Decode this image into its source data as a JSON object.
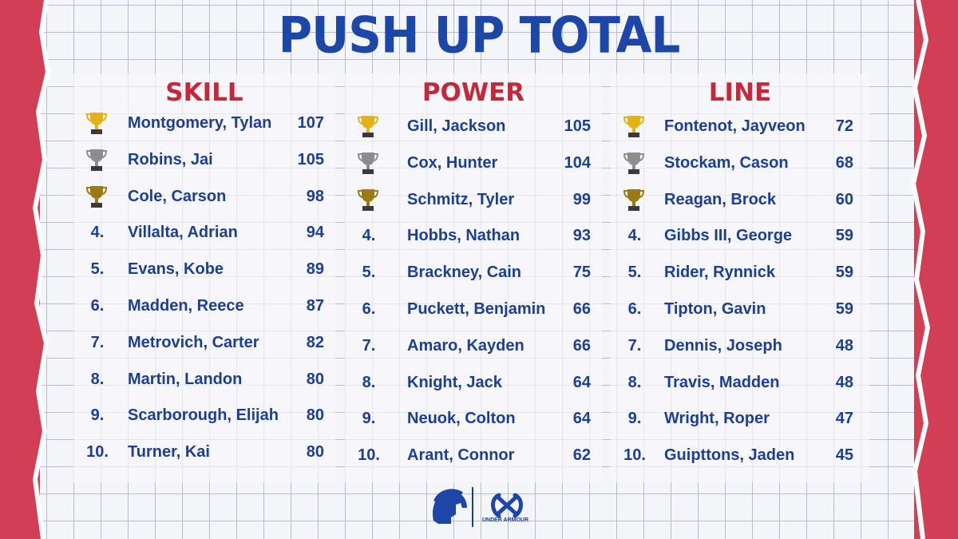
{
  "title": "PUSH UP TOTAL",
  "colors": {
    "title": "#1c47a8",
    "heading": "#c5283a",
    "text": "#1c3f93",
    "border": "#d23f55",
    "gold": "#e3b217",
    "silver": "#8d8d8d",
    "bronze": "#9c7a12"
  },
  "brand": {
    "ua_text": "UNDER ARMOUR"
  },
  "columns": [
    {
      "heading": "SKILL",
      "rows": [
        {
          "rank": "",
          "trophy": "gold-trophy-icon",
          "name": "Montgomery, Tylan",
          "score": "107"
        },
        {
          "rank": "",
          "trophy": "silver-trophy-icon",
          "name": "Robins, Jai",
          "score": "105"
        },
        {
          "rank": "",
          "trophy": "bronze-trophy-icon",
          "name": "Cole, Carson",
          "score": "98"
        },
        {
          "rank": "4.",
          "name": "Villalta, Adrian",
          "score": "94"
        },
        {
          "rank": "5.",
          "name": "Evans, Kobe",
          "score": "89"
        },
        {
          "rank": "6.",
          "name": "Madden, Reece",
          "score": "87"
        },
        {
          "rank": "7.",
          "name": "Metrovich, Carter",
          "score": "82"
        },
        {
          "rank": "8.",
          "name": "Martin, Landon",
          "score": "80"
        },
        {
          "rank": "9.",
          "name": "Scarborough, Elijah",
          "score": "80"
        },
        {
          "rank": "10.",
          "name": "Turner, Kai",
          "score": "80"
        }
      ]
    },
    {
      "heading": "POWER",
      "rows": [
        {
          "rank": "",
          "trophy": "gold-trophy-icon",
          "name": "Gill, Jackson",
          "score": "105"
        },
        {
          "rank": "",
          "trophy": "silver-trophy-icon",
          "name": "Cox, Hunter",
          "score": "104"
        },
        {
          "rank": "",
          "trophy": "bronze-trophy-icon",
          "name": "Schmitz, Tyler",
          "score": "99"
        },
        {
          "rank": "4.",
          "name": "Hobbs, Nathan",
          "score": "93"
        },
        {
          "rank": "5.",
          "name": "Brackney, Cain",
          "score": "75"
        },
        {
          "rank": "6.",
          "name": "Puckett, Benjamin",
          "score": "66"
        },
        {
          "rank": "7.",
          "name": "Amaro, Kayden",
          "score": "66"
        },
        {
          "rank": "8.",
          "name": "Knight, Jack",
          "score": "64"
        },
        {
          "rank": "9.",
          "name": "Neuok, Colton",
          "score": "64"
        },
        {
          "rank": "10.",
          "name": "Arant, Connor",
          "score": "62"
        }
      ]
    },
    {
      "heading": "LINE",
      "rows": [
        {
          "rank": "",
          "trophy": "gold-trophy-icon",
          "name": "Fontenot, Jayveon",
          "score": "72"
        },
        {
          "rank": "",
          "trophy": "silver-trophy-icon",
          "name": "Stockam, Cason",
          "score": "68"
        },
        {
          "rank": "",
          "trophy": "bronze-trophy-icon",
          "name": "Reagan, Brock",
          "score": "60"
        },
        {
          "rank": "4.",
          "name": "Gibbs III, George",
          "score": "59"
        },
        {
          "rank": "5.",
          "name": "Rider, Rynnick",
          "score": "59"
        },
        {
          "rank": "6.",
          "name": "Tipton, Gavin",
          "score": "59"
        },
        {
          "rank": "7.",
          "name": "Dennis, Joseph",
          "score": "48"
        },
        {
          "rank": "8.",
          "name": "Travis, Madden",
          "score": "48"
        },
        {
          "rank": "9.",
          "name": "Wright, Roper",
          "score": "47"
        },
        {
          "rank": "10.",
          "name": "Guipttons, Jaden",
          "score": "45"
        }
      ]
    }
  ]
}
